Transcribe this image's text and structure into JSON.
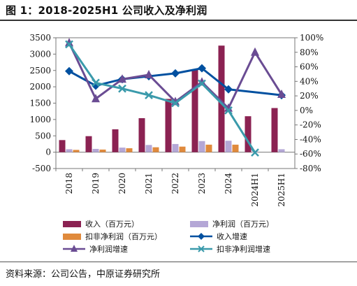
{
  "title": "图 1：2018-2025H1 公司收入及净利润",
  "source": "资料来源：公司公告，中原证券研究所",
  "chart_data": {
    "type": "bar",
    "categories": [
      "2018",
      "2019",
      "2020",
      "2021",
      "2022",
      "2023",
      "2024",
      "2024H1",
      "2025H1"
    ],
    "left_axis": {
      "min": -500,
      "max": 3500,
      "step": 500,
      "ticks": [
        "-500",
        "0",
        "500",
        "1000",
        "1500",
        "2000",
        "2500",
        "3000",
        "3500"
      ]
    },
    "right_axis": {
      "min": -80,
      "max": 100,
      "step": 20,
      "ticks": [
        "-80%",
        "-60%",
        "-40%",
        "-20%",
        "0%",
        "20%",
        "40%",
        "60%",
        "80%",
        "100%"
      ]
    },
    "series": [
      {
        "name": "收入（百万元）",
        "kind": "bar",
        "axis": "left",
        "color": "#8B2252",
        "values": [
          370,
          490,
          700,
          1040,
          1630,
          2530,
          3260,
          1100,
          1350
        ]
      },
      {
        "name": "净利润（百万元）",
        "kind": "bar",
        "axis": "left",
        "color": "#B4A7D6",
        "values": [
          90,
          100,
          140,
          220,
          250,
          340,
          350,
          20,
          90
        ]
      },
      {
        "name": "扣非净利润（百万元）",
        "kind": "bar",
        "axis": "left",
        "color": "#E08A3C",
        "values": [
          70,
          80,
          120,
          150,
          170,
          230,
          230,
          0,
          0
        ]
      },
      {
        "name": "收入增速",
        "kind": "line",
        "axis": "right",
        "color": "#0050A0",
        "marker": "diamond",
        "values": [
          54,
          34,
          43,
          47,
          51,
          58,
          29,
          null,
          21
        ]
      },
      {
        "name": "净利润增速",
        "kind": "line",
        "axis": "right",
        "color": "#6A4C93",
        "marker": "triangle",
        "values": [
          93,
          16,
          43,
          49,
          12,
          39,
          3,
          80,
          22
        ]
      },
      {
        "name": "扣非净利润增速",
        "kind": "line",
        "axis": "right",
        "color": "#3A9AAB",
        "marker": "x",
        "values": [
          91,
          38,
          30,
          21,
          10,
          37,
          0,
          -58,
          null
        ]
      }
    ]
  }
}
